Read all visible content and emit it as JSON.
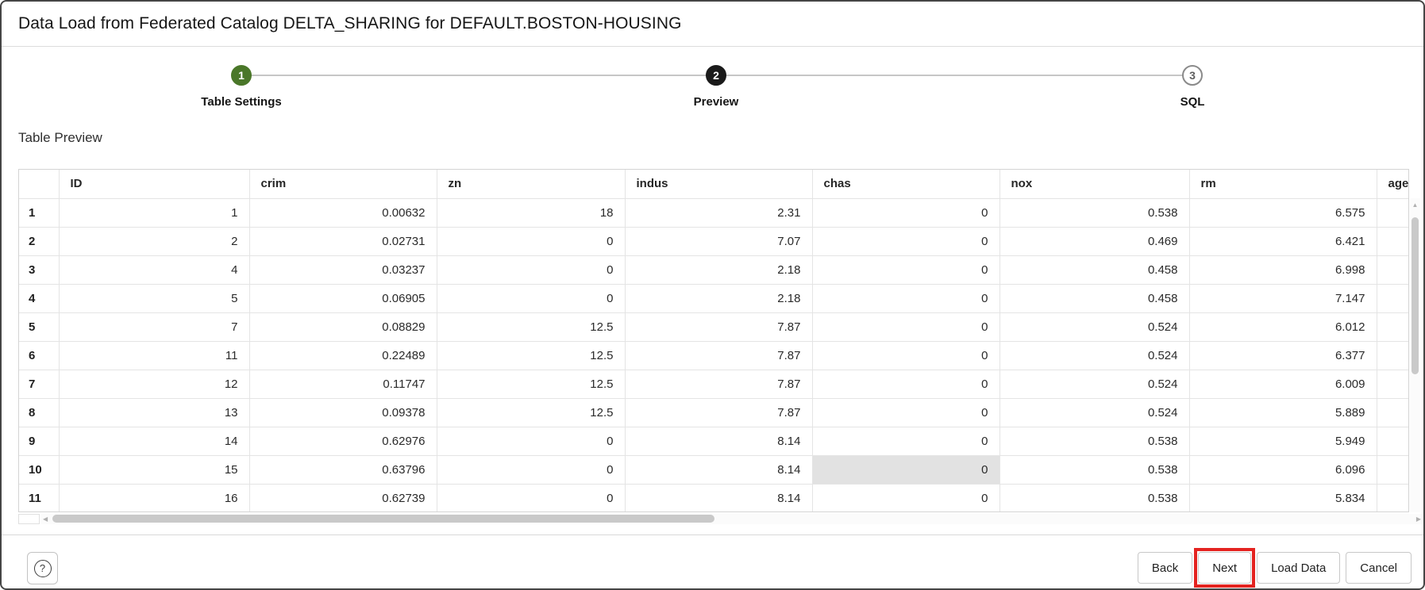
{
  "dialog": {
    "title": "Data Load from Federated Catalog DELTA_SHARING for DEFAULT.BOSTON-HOUSING"
  },
  "stepper": {
    "steps": [
      {
        "number": "1",
        "label": "Table Settings",
        "state": "completed"
      },
      {
        "number": "2",
        "label": "Preview",
        "state": "active"
      },
      {
        "number": "3",
        "label": "SQL",
        "state": "upcoming"
      }
    ]
  },
  "section": {
    "title": "Table Preview"
  },
  "table": {
    "columns": [
      "",
      "ID",
      "crim",
      "zn",
      "indus",
      "chas",
      "nox",
      "rm",
      "age"
    ],
    "rows": [
      [
        "1",
        "1",
        "0.00632",
        "18",
        "2.31",
        "0",
        "0.538",
        "6.575",
        ""
      ],
      [
        "2",
        "2",
        "0.02731",
        "0",
        "7.07",
        "0",
        "0.469",
        "6.421",
        ""
      ],
      [
        "3",
        "4",
        "0.03237",
        "0",
        "2.18",
        "0",
        "0.458",
        "6.998",
        ""
      ],
      [
        "4",
        "5",
        "0.06905",
        "0",
        "2.18",
        "0",
        "0.458",
        "7.147",
        ""
      ],
      [
        "5",
        "7",
        "0.08829",
        "12.5",
        "7.87",
        "0",
        "0.524",
        "6.012",
        ""
      ],
      [
        "6",
        "11",
        "0.22489",
        "12.5",
        "7.87",
        "0",
        "0.524",
        "6.377",
        ""
      ],
      [
        "7",
        "12",
        "0.11747",
        "12.5",
        "7.87",
        "0",
        "0.524",
        "6.009",
        ""
      ],
      [
        "8",
        "13",
        "0.09378",
        "12.5",
        "7.87",
        "0",
        "0.524",
        "5.889",
        ""
      ],
      [
        "9",
        "14",
        "0.62976",
        "0",
        "8.14",
        "0",
        "0.538",
        "5.949",
        ""
      ],
      [
        "10",
        "15",
        "0.63796",
        "0",
        "8.14",
        "0",
        "0.538",
        "6.096",
        ""
      ],
      [
        "11",
        "16",
        "0.62739",
        "0",
        "8.14",
        "0",
        "0.538",
        "5.834",
        ""
      ]
    ],
    "highlighted_cell": {
      "row_number": "10",
      "column": "chas"
    }
  },
  "footer": {
    "help_label": "?",
    "buttons": [
      {
        "label": "Back",
        "highlighted": false
      },
      {
        "label": "Next",
        "highlighted": true
      },
      {
        "label": "Load Data",
        "highlighted": false
      },
      {
        "label": "Cancel",
        "highlighted": false
      }
    ]
  },
  "colors": {
    "step_completed_green": "#4a7729",
    "step_active_black": "#1a1a1a",
    "annotation_red": "#e42320",
    "highlight_cell_gray": "#e2e2e2"
  }
}
